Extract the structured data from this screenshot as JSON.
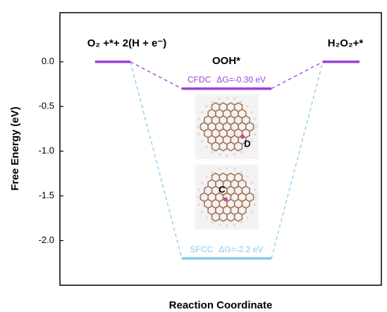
{
  "chart_data": {
    "type": "energy-diagram",
    "y_label": "Free Energy (eV)",
    "x_label": "Reaction Coordinate",
    "categories": [
      null,
      null,
      null
    ],
    "state_labels": [
      "O₂ +*+ 2(H + e⁻)",
      "OOH*",
      "H₂O₂+*"
    ],
    "series": [
      {
        "name": "SFCC",
        "color": "#86c9ee",
        "values": [
          0,
          -2.2,
          0
        ],
        "value_labels": [
          null,
          "ΔG=-2.2 eV",
          null
        ]
      },
      {
        "name": "CFDC",
        "color": "#9b3fdc",
        "values": [
          0,
          -0.3,
          0
        ],
        "value_labels": [
          null,
          "ΔG=-0.30 eV",
          null
        ]
      }
    ],
    "structure_labels": [
      "D",
      "C"
    ],
    "ylim": [
      -2.5,
      0.55
    ],
    "yticks": [
      {
        "value": 0,
        "label": "0.0"
      },
      -0.5,
      {
        "value": -1,
        "label": "-1.0"
      },
      -1.5,
      {
        "value": -2,
        "label": "-2.0"
      }
    ]
  }
}
